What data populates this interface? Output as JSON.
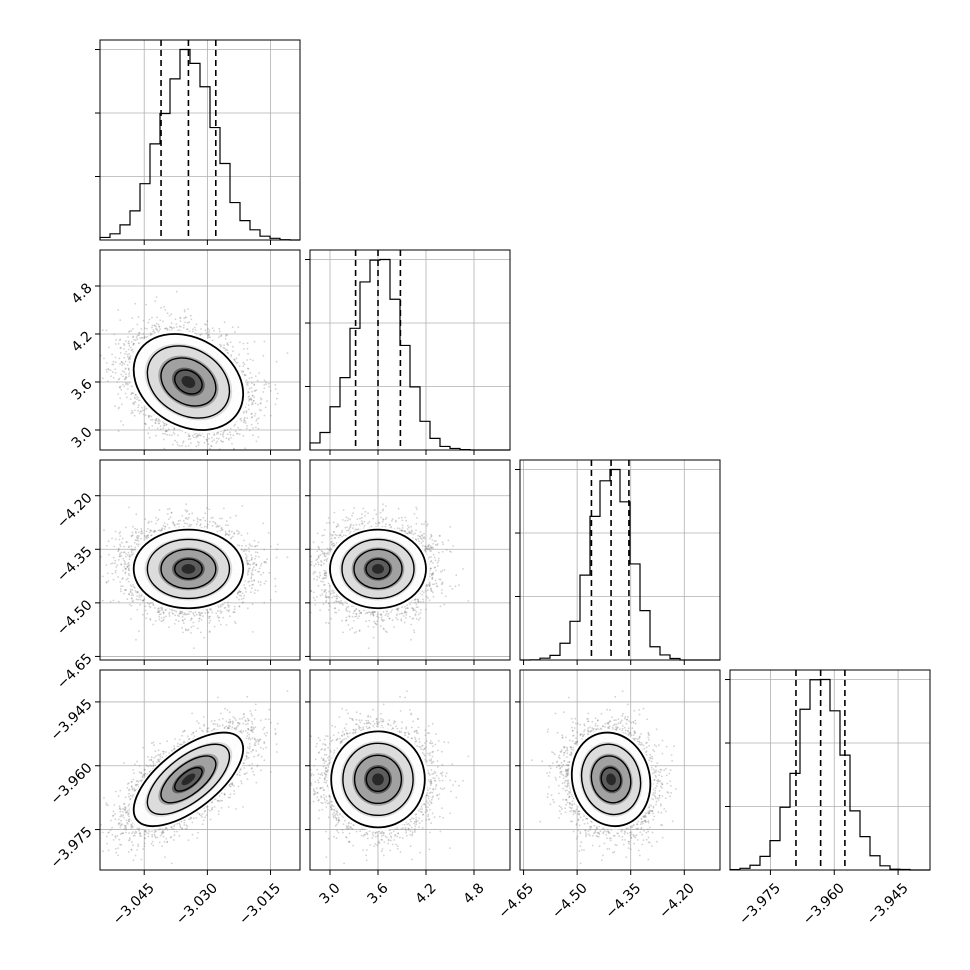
{
  "chart_data": {
    "type": "corner",
    "variables": [
      {
        "ticks": [
          -3.045,
          -3.03,
          -3.015
        ],
        "tick_labels": [
          "−3.045",
          "−3.030",
          "−3.015"
        ],
        "range": [
          -3.0555,
          -3.008
        ],
        "mean": -3.0345,
        "std": 0.0065,
        "quantiles": [
          -3.041,
          -3.0345,
          -3.028
        ]
      },
      {
        "ticks": [
          3.0,
          3.6,
          4.2,
          4.8
        ],
        "tick_labels": [
          "3.0",
          "3.6",
          "4.2",
          "4.8"
        ],
        "range": [
          2.75,
          5.25
        ],
        "mean": 3.6,
        "std": 0.3,
        "quantiles": [
          3.32,
          3.6,
          3.88
        ]
      },
      {
        "ticks": [
          -4.65,
          -4.5,
          -4.35,
          -4.2
        ],
        "tick_labels": [
          "−4.65",
          "−4.50",
          "−4.35",
          "−4.20"
        ],
        "range": [
          -4.66,
          -4.1
        ],
        "mean": -4.405,
        "std": 0.055,
        "quantiles": [
          -4.46,
          -4.405,
          -4.355
        ]
      },
      {
        "ticks": [
          -3.975,
          -3.96,
          -3.945
        ],
        "tick_labels": [
          "−3.975",
          "−3.960",
          "−3.945"
        ],
        "range": [
          -3.9845,
          -3.9375
        ],
        "mean": -3.9632,
        "std": 0.0055,
        "quantiles": [
          -3.969,
          -3.9632,
          -3.9575
        ]
      }
    ],
    "correlations": [
      [
        1.0,
        -0.25,
        0.0,
        0.65
      ],
      [
        -0.25,
        1.0,
        0.0,
        0.0
      ],
      [
        0.0,
        0.0,
        1.0,
        -0.1
      ],
      [
        0.65,
        0.0,
        -0.1,
        1.0
      ]
    ],
    "contour_levels_sigma": [
      0.5,
      1.0,
      1.5,
      2.0
    ],
    "histogram_bins": 20,
    "grid": true,
    "line_color": "#000000",
    "point_color": "#7f7f7f"
  }
}
